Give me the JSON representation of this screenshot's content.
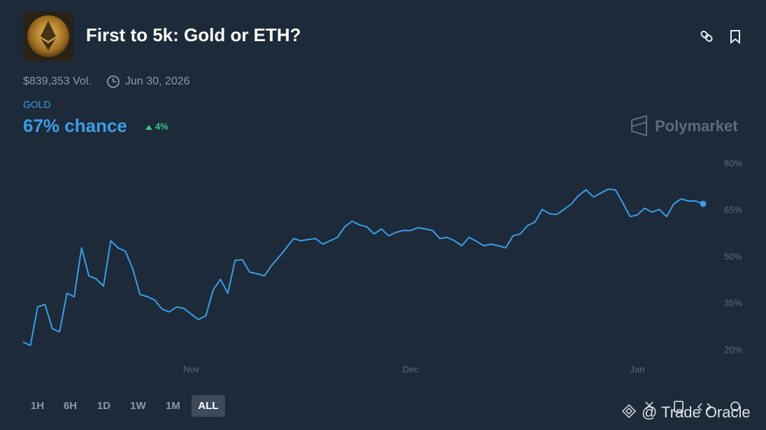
{
  "market": {
    "title": "First to 5k: Gold or ETH?",
    "volume": "$839,353 Vol.",
    "end_date": "Jun 30, 2026",
    "chance": "67% chance",
    "change": "4%",
    "brand": "Polymarket",
    "ranges": [
      "1H",
      "6H",
      "1D",
      "1W",
      "1M",
      "ALL"
    ],
    "watermark": "@ Trade Oracle"
  },
  "chart_data": {
    "type": "line",
    "categories": [
      null,
      null,
      null,
      null,
      null,
      null,
      null,
      null,
      null,
      null,
      null,
      null,
      null,
      null,
      null,
      null,
      null,
      null,
      null,
      null,
      null,
      null,
      null,
      "Nov",
      null,
      null,
      null,
      null,
      null,
      null,
      null,
      null,
      null,
      null,
      null,
      null,
      null,
      null,
      null,
      null,
      null,
      null,
      null,
      null,
      null,
      null,
      null,
      null,
      null,
      null,
      null,
      null,
      null,
      "Dec",
      null,
      null,
      null,
      null,
      null,
      null,
      null,
      null,
      null,
      null,
      null,
      null,
      null,
      null,
      null,
      null,
      null,
      null,
      null,
      null,
      null,
      null,
      null,
      null,
      null,
      null,
      null,
      null,
      null,
      null,
      "Jan",
      null,
      null,
      null,
      null,
      null,
      null,
      null,
      null,
      null
    ],
    "series": [
      {
        "name": "GOLD",
        "color": "#3a9ee4",
        "values": [
          22.7,
          21.6,
          34,
          34.8,
          27,
          26,
          38.4,
          37.3,
          53,
          44,
          43,
          40.7,
          55.3,
          53,
          51.9,
          46.3,
          38,
          37.3,
          36.2,
          33.3,
          32.4,
          34,
          33.5,
          31.7,
          29.9,
          31.2,
          39.5,
          42.9,
          38.4,
          49,
          49.2,
          45.2,
          44.7,
          44,
          47.4,
          50.1,
          53,
          56,
          55.3,
          55.7,
          56,
          54.2,
          55.3,
          56.4,
          59.8,
          61.6,
          60.4,
          59.8,
          57.5,
          59.1,
          56.9,
          58,
          58.6,
          58.6,
          59.5,
          59.1,
          58.6,
          56,
          56.4,
          55.3,
          53.7,
          56.4,
          55.1,
          53.7,
          54.2,
          53.7,
          53,
          56.9,
          57.5,
          60.2,
          61.3,
          65.4,
          64,
          63.8,
          65.4,
          67.2,
          69.9,
          71.7,
          69.4,
          70.6,
          71.9,
          71.7,
          67.6,
          63.1,
          63.6,
          65.8,
          64.5,
          65.4,
          63.1,
          67.2,
          68.8,
          68.1,
          68.1,
          67.2
        ]
      }
    ],
    "ylim": [
      20,
      80
    ],
    "yticks": [
      {
        "value": 20,
        "label": "20%"
      },
      {
        "value": 35,
        "label": "35%"
      },
      {
        "value": 50,
        "label": "50%"
      },
      {
        "value": 65,
        "label": "65%"
      },
      {
        "value": 80,
        "label": "80%"
      }
    ],
    "grid": true
  }
}
